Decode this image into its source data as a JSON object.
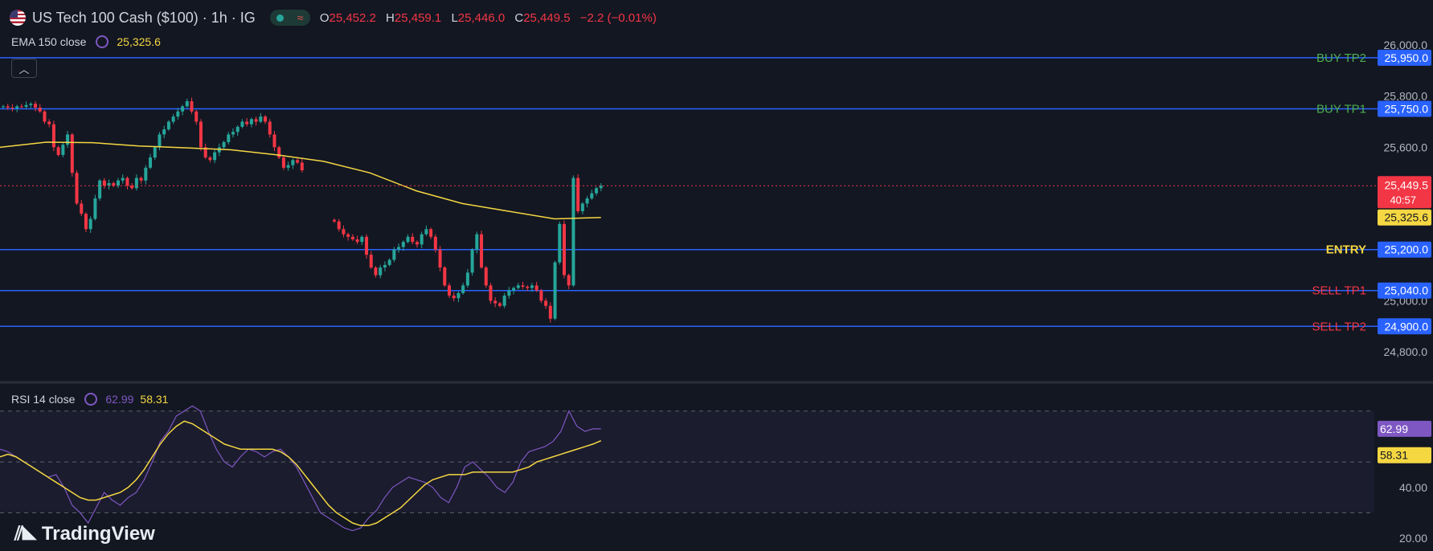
{
  "header": {
    "symbol_label": "US Tech 100 Cash ($100) · 1h · IG",
    "status_icon": "market-open-dot",
    "ohlc": {
      "o_label": "O",
      "o": "25,452.2",
      "h_label": "H",
      "h": "25,459.1",
      "l_label": "L",
      "l": "25,446.0",
      "c_label": "C",
      "c": "25,449.5",
      "change": "−2.2 (−0.01%)"
    }
  },
  "indicators": {
    "ema_label": "EMA 150 close",
    "ema_value": "25,325.6",
    "rsi_label": "RSI 14 close",
    "rsi_value": "62.99",
    "rsi_ma_value": "58.31"
  },
  "branding": {
    "logo_text": "TradingView"
  },
  "colors": {
    "background": "#131722",
    "up": "#26a69a",
    "down": "#f23645",
    "ema": "#f5d742",
    "level_line": "#2962ff",
    "rsi": "#7e57c2",
    "rsi_ma": "#f5d742",
    "buy": "#4caf50",
    "sell": "#f23645",
    "entry": "#f5d742"
  },
  "chart_data": [
    {
      "type": "candlestick",
      "title": "US Tech 100 Cash ($100) · 1h · IG",
      "ylim": [
        24700,
        26050
      ],
      "y_ticks": [
        "26,000.0",
        "25,800.0",
        "25,600.0",
        "25,000.0",
        "24,800.0"
      ],
      "y_tick_values": [
        26000,
        25800,
        25600,
        25000,
        24800
      ],
      "last_price": "25,449.5",
      "countdown": "40:57",
      "ema_last": "25,325.6",
      "levels": [
        {
          "label": "BUY TP2",
          "value": 25950,
          "value_label": "25,950.0",
          "kind": "buy"
        },
        {
          "label": "BUY TP1",
          "value": 25750,
          "value_label": "25,750.0",
          "kind": "buy"
        },
        {
          "label": "ENTRY",
          "value": 25200,
          "value_label": "25,200.0",
          "kind": "entry"
        },
        {
          "label": "SELL TP1",
          "value": 25040,
          "value_label": "25,040.0",
          "kind": "sell"
        },
        {
          "label": "SELL TP2",
          "value": 24900,
          "value_label": "24,900.0",
          "kind": "sell"
        }
      ],
      "segments": [
        {
          "closes": [
            25760,
            25755,
            25752,
            25760,
            25758,
            25765,
            25770,
            25755,
            25740,
            25700,
            25690,
            25600,
            25570,
            25610,
            25650,
            25500,
            25380,
            25340,
            25280,
            25320,
            25400,
            25470,
            25450,
            25460,
            25450,
            25470,
            25480,
            25450,
            25440,
            25480,
            25470,
            25520,
            25560,
            25600,
            25650,
            25670,
            25700,
            25720,
            25740,
            25760,
            25780,
            25740,
            25700,
            25600,
            25560,
            25550,
            25580,
            25600,
            25620,
            25650,
            25660,
            25680,
            25700,
            25690,
            25710,
            25700,
            25720,
            25700,
            25650,
            25600,
            25560,
            25520,
            25530,
            25550,
            25540,
            25510
          ]
        },
        {
          "closes": [
            25310,
            25280,
            25260,
            25250,
            25240,
            25230,
            25250,
            25180,
            25130,
            25100,
            25130,
            25140,
            25160,
            25200,
            25210,
            25230,
            25250,
            25230,
            25220,
            25260,
            25280,
            25250,
            25200,
            25130,
            25060,
            25020,
            25010,
            25030,
            25060,
            25110,
            25200,
            25260,
            25130,
            25060,
            25000,
            24990,
            24980,
            25020,
            25040,
            25050,
            25060,
            25055,
            25050,
            25060,
            25040,
            25000,
            24980,
            24930,
            25150,
            25300,
            25100,
            25060,
            25480,
            25350,
            25380,
            25400,
            25420,
            25440,
            25449.5
          ]
        }
      ],
      "ema_values": [
        25600,
        25620,
        25618,
        25605,
        25598,
        25590,
        25570,
        25545,
        25500,
        25430,
        25380,
        25350,
        25320,
        25325.6
      ]
    },
    {
      "type": "line",
      "title": "RSI 14 close",
      "ylim": [
        15,
        80
      ],
      "y_ticks": [
        "40.00",
        "20.00"
      ],
      "y_tick_values": [
        40,
        20
      ],
      "bands": [
        70,
        50,
        30
      ],
      "series": [
        {
          "name": "RSI",
          "last": "62.99",
          "values": [
            55,
            54,
            52,
            50,
            48,
            46,
            44,
            45,
            40,
            33,
            30,
            26,
            32,
            38,
            35,
            33,
            36,
            38,
            43,
            50,
            58,
            62,
            68,
            70,
            72,
            70,
            62,
            55,
            50,
            48,
            52,
            55,
            54,
            52,
            54,
            55,
            52,
            48,
            42,
            36,
            30,
            28,
            26,
            24,
            23,
            24,
            28,
            31,
            36,
            40,
            42,
            44,
            43,
            42,
            40,
            36,
            34,
            40,
            48,
            50,
            47,
            44,
            40,
            38,
            42,
            50,
            54,
            55,
            56,
            58,
            62,
            70,
            64,
            62,
            63,
            62.99
          ]
        },
        {
          "name": "RSI MA",
          "last": "58.31",
          "values": [
            52,
            53,
            52,
            50,
            48,
            46,
            44,
            42,
            40,
            38,
            36,
            35,
            35,
            36,
            37,
            38,
            40,
            43,
            47,
            52,
            57,
            61,
            64,
            66,
            65,
            63,
            61,
            59,
            57,
            56,
            55,
            55,
            55,
            55,
            55,
            54,
            52,
            49,
            45,
            41,
            37,
            33,
            30,
            28,
            26,
            25,
            25,
            26,
            28,
            30,
            32,
            35,
            38,
            41,
            43,
            44,
            45,
            45,
            45,
            46,
            46,
            46,
            46,
            46,
            46,
            47,
            48,
            50,
            51,
            52,
            53,
            54,
            55,
            56,
            57,
            58.31
          ]
        }
      ]
    }
  ]
}
